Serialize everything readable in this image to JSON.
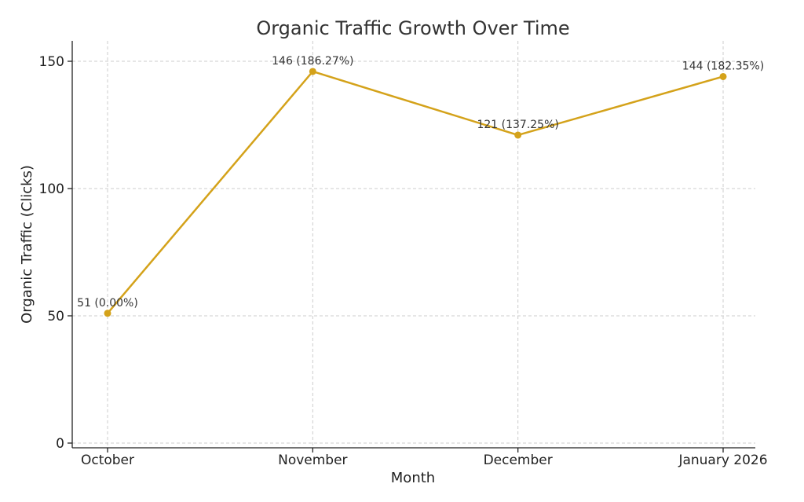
{
  "chart_data": {
    "type": "line",
    "title": "Organic Traffic Growth Over Time",
    "xlabel": "Month",
    "ylabel": "Organic Traffic (Clicks)",
    "categories": [
      "October",
      "November",
      "December",
      "January 2026"
    ],
    "series": [
      {
        "values": [
          51,
          146,
          121,
          144
        ],
        "labels": [
          "51 (0.00%)",
          "146 (186.27%)",
          "121 (137.25%)",
          "144 (182.35%)"
        ],
        "color": "#D4A21A"
      }
    ],
    "ylim": [
      0,
      150
    ],
    "yticks": [
      0,
      50,
      100,
      150
    ],
    "grid": true
  }
}
